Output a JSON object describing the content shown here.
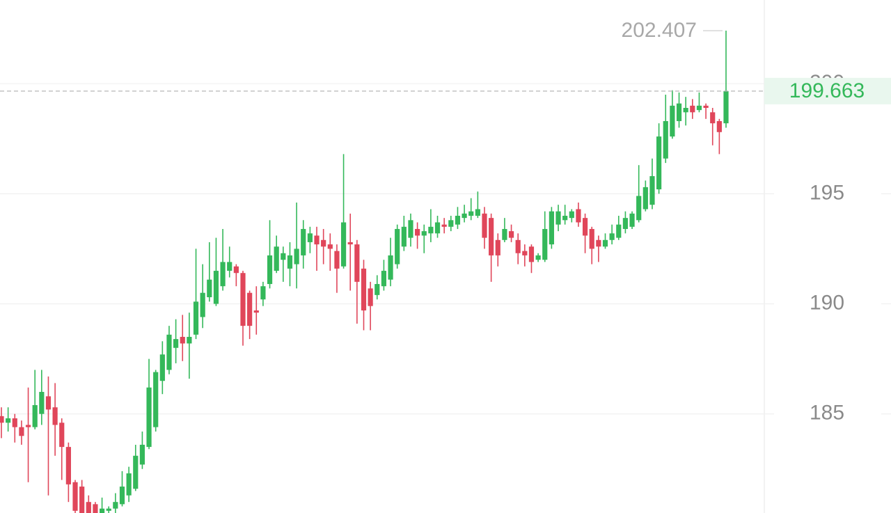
{
  "chart_data": {
    "type": "candlestick",
    "up_color": "#34b85a",
    "down_color": "#e0465a",
    "ylim": [
      180.5,
      203.8
    ],
    "yticks": [
      185,
      190,
      195,
      200
    ],
    "grid": true,
    "open": [
      184.9,
      184.6,
      184.8,
      184.4,
      184.5,
      184.4,
      185.0,
      185.8,
      185.3,
      184.6,
      183.5,
      181.9,
      181.7,
      181.0,
      180.9,
      180.5,
      180.6,
      180.7,
      180.9,
      181.3,
      181.6,
      182.7,
      183.5,
      184.4,
      186.5,
      187.0,
      188.0,
      188.5,
      188.2,
      188.6,
      189.4,
      190.3,
      190.0,
      190.8,
      191.5,
      191.7,
      191.4,
      190.5,
      189.7,
      190.2,
      190.9,
      191.5,
      192.0,
      191.6,
      191.8,
      192.2,
      192.8,
      193.1,
      192.9,
      192.7,
      192.4,
      191.7,
      192.8,
      192.7,
      191.6,
      190.7,
      190.4,
      190.8,
      191.1,
      191.8,
      192.6,
      193.0,
      193.4,
      193.1,
      193.2,
      193.2,
      193.6,
      193.5,
      193.6,
      193.9,
      194.0,
      194.0,
      194.1,
      193.9,
      192.9,
      192.9,
      193.3,
      192.9,
      192.4,
      192.6,
      192.0,
      192.0,
      192.7,
      193.6,
      193.8,
      193.9,
      194.3,
      193.9,
      193.4,
      192.9,
      192.6,
      192.9,
      193.0,
      193.4,
      193.5,
      193.8,
      194.3,
      194.5,
      195.2,
      196.6,
      197.6,
      198.3,
      198.7,
      199.0,
      198.8,
      199.0,
      198.7,
      198.3,
      198.2
    ],
    "high": [
      185.3,
      185.3,
      185.0,
      184.7,
      186.2,
      187.0,
      187.0,
      186.7,
      186.4,
      184.8,
      183.7,
      182.0,
      182.0,
      181.3,
      181.0,
      181.2,
      180.8,
      181.4,
      182.4,
      182.6,
      183.6,
      184.2,
      187.5,
      187.0,
      188.3,
      189.0,
      189.3,
      189.5,
      189.6,
      192.5,
      191.8,
      192.8,
      193.0,
      193.4,
      192.6,
      191.8,
      191.5,
      190.6,
      190.8,
      191.0,
      193.8,
      193.1,
      192.6,
      192.8,
      194.6,
      193.8,
      193.5,
      193.5,
      193.4,
      193.2,
      192.7,
      196.8,
      194.1,
      192.9,
      192.0,
      191.0,
      191.3,
      192.0,
      193.0,
      193.6,
      194.0,
      194.1,
      193.7,
      193.6,
      194.3,
      194.0,
      193.9,
      194.0,
      194.4,
      194.5,
      194.8,
      195.1,
      194.4,
      194.1,
      193.2,
      193.9,
      193.6,
      193.2,
      192.7,
      192.7,
      192.3,
      194.2,
      194.4,
      194.5,
      194.5,
      194.3,
      194.6,
      194.1,
      193.5,
      193.1,
      193.2,
      193.6,
      194.0,
      194.2,
      194.2,
      196.3,
      195.6,
      196.6,
      198.2,
      199.5,
      199.7,
      199.6,
      199.4,
      199.3,
      199.6,
      199.1,
      198.9,
      198.4,
      202.407
    ],
    "low": [
      183.9,
      184.2,
      183.7,
      183.6,
      181.9,
      184.3,
      184.5,
      181.3,
      183.1,
      182.0,
      181.0,
      180.5,
      180.5,
      180.5,
      180.5,
      180.5,
      180.5,
      180.5,
      180.8,
      181.0,
      181.5,
      182.5,
      183.4,
      184.2,
      185.9,
      186.8,
      187.3,
      187.4,
      186.6,
      188.4,
      188.9,
      190.1,
      189.9,
      190.6,
      191.2,
      190.8,
      188.1,
      188.4,
      188.6,
      189.9,
      190.7,
      191.4,
      191.0,
      190.8,
      190.7,
      191.6,
      192.3,
      191.5,
      191.8,
      191.5,
      190.5,
      191.6,
      190.6,
      189.1,
      188.8,
      188.8,
      190.2,
      190.6,
      190.8,
      191.6,
      192.4,
      192.6,
      192.5,
      192.3,
      192.8,
      193.0,
      193.2,
      193.3,
      193.4,
      193.7,
      193.8,
      193.9,
      192.5,
      191.0,
      191.7,
      192.8,
      192.8,
      191.8,
      191.7,
      191.4,
      191.9,
      191.9,
      192.5,
      193.3,
      193.6,
      193.7,
      193.5,
      192.3,
      191.8,
      191.9,
      192.5,
      192.7,
      192.9,
      193.2,
      193.4,
      193.7,
      194.2,
      194.3,
      195.0,
      196.4,
      197.5,
      198.0,
      198.1,
      198.4,
      198.7,
      198.4,
      197.2,
      196.8,
      198.0
    ],
    "close": [
      184.6,
      184.8,
      184.4,
      184.0,
      184.4,
      185.4,
      186.0,
      185.2,
      184.5,
      183.5,
      181.8,
      180.6,
      180.5,
      180.5,
      180.5,
      180.7,
      180.7,
      181.0,
      181.7,
      182.3,
      183.1,
      183.6,
      186.2,
      186.9,
      187.7,
      188.6,
      188.4,
      188.2,
      188.5,
      190.1,
      190.5,
      191.1,
      191.5,
      191.9,
      191.9,
      191.4,
      189.0,
      189.0,
      189.6,
      190.8,
      192.2,
      192.6,
      192.3,
      192.2,
      192.5,
      193.4,
      193.2,
      192.7,
      192.6,
      192.5,
      191.6,
      193.7,
      192.7,
      191.0,
      189.7,
      189.9,
      190.9,
      191.5,
      192.2,
      193.4,
      193.5,
      193.8,
      193.1,
      193.3,
      193.5,
      193.7,
      193.5,
      193.8,
      194.0,
      194.1,
      194.2,
      194.3,
      193.0,
      192.2,
      192.2,
      193.4,
      193.0,
      192.3,
      192.2,
      191.9,
      192.2,
      193.4,
      194.2,
      194.2,
      194.0,
      194.2,
      193.7,
      193.1,
      192.5,
      192.6,
      192.9,
      193.2,
      193.6,
      193.9,
      194.1,
      194.9,
      195.3,
      195.8,
      197.6,
      198.3,
      199.0,
      199.1,
      198.9,
      198.7,
      199.0,
      198.9,
      198.2,
      197.8,
      199.663
    ]
  }
}
